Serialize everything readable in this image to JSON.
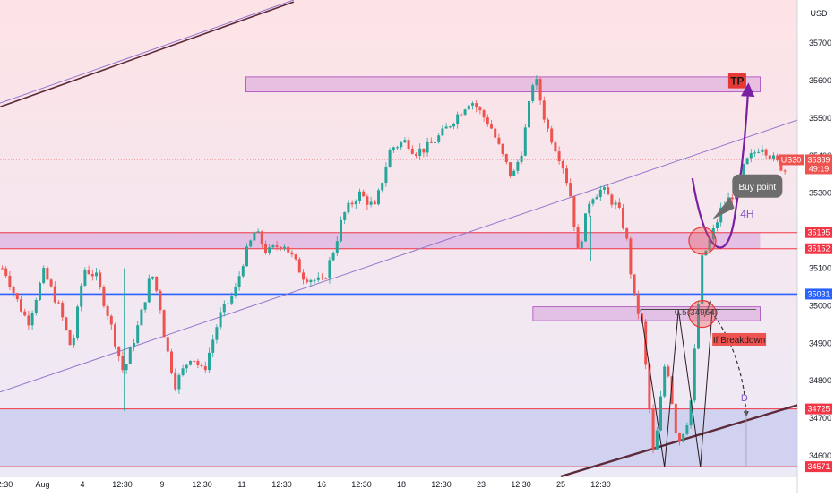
{
  "chart_data": {
    "type": "candlestick",
    "symbol": "US30",
    "currency": "USD",
    "current_price": 35389,
    "countdown": "49:19",
    "ylim": [
      34545,
      35815
    ],
    "y_ticks": [
      35700,
      35600,
      35500,
      35400,
      35300,
      35200,
      35100,
      35000,
      34900,
      34800,
      34700,
      34600
    ],
    "x_ticks": [
      "12:30",
      "Aug",
      "4",
      "12:30",
      "9",
      "12:30",
      "11",
      "12:30",
      "16",
      "12:30",
      "18",
      "12:30",
      "23",
      "12:30",
      "25",
      "12:30"
    ],
    "price_levels": [
      {
        "value": 35195,
        "kind": "resistance",
        "color": "#f23645"
      },
      {
        "value": 35152,
        "kind": "resistance",
        "color": "#f23645"
      },
      {
        "value": 35031,
        "kind": "pivot",
        "color": "#2962ff"
      },
      {
        "value": 34725,
        "kind": "support",
        "color": "#f23645"
      },
      {
        "value": 34571,
        "kind": "support",
        "color": "#f23645"
      }
    ],
    "zones": [
      {
        "low": 35570,
        "high": 35610,
        "label": "TP"
      },
      {
        "low": 35152,
        "high": 35195
      },
      {
        "low": 34960,
        "high": 34997,
        "label": "0.5(34964)"
      },
      {
        "low": 34571,
        "high": 34725
      }
    ],
    "annotations": {
      "tp": "TP",
      "buy_point": "Buy point",
      "timeframe": "4H",
      "fib": "0.5(34964)",
      "breakdown": "If Breakdown",
      "d_point": "D"
    },
    "colors": {
      "up": "#26a69a",
      "down": "#ef5350",
      "zone": "#ce93d8",
      "channel": "#9575cd",
      "trend": "#5d2a3a",
      "bg_top": "#fde3e6",
      "bg_bottom": "#eceaf7"
    },
    "price_path": [
      [
        0,
        35100
      ],
      [
        0.3,
        35020
      ],
      [
        0.6,
        34955
      ],
      [
        1,
        35090
      ],
      [
        1.4,
        34990
      ],
      [
        1.7,
        34880
      ],
      [
        2,
        35100
      ],
      [
        2.3,
        35080
      ],
      [
        2.6,
        34980
      ],
      [
        3,
        34820
      ],
      [
        3.4,
        34960
      ],
      [
        3.7,
        35090
      ],
      [
        3.9,
        35010
      ],
      [
        4.05,
        34900
      ],
      [
        4.3,
        34790
      ],
      [
        4.7,
        34870
      ],
      [
        5,
        34820
      ],
      [
        5.4,
        34970
      ],
      [
        5.8,
        35040
      ],
      [
        6,
        35120
      ],
      [
        6.3,
        35200
      ],
      [
        6.6,
        35140
      ],
      [
        7,
        35170
      ],
      [
        7.5,
        35080
      ],
      [
        8,
        35060
      ],
      [
        8.3,
        35160
      ],
      [
        8.5,
        35240
      ],
      [
        8.9,
        35300
      ],
      [
        9.3,
        35260
      ],
      [
        9.7,
        35420
      ],
      [
        10.1,
        35440
      ],
      [
        10.3,
        35410
      ],
      [
        10.6,
        35420
      ],
      [
        11,
        35460
      ],
      [
        11.3,
        35500
      ],
      [
        11.7,
        35550
      ],
      [
        12.2,
        35480
      ],
      [
        12.5,
        35400
      ],
      [
        12.75,
        35340
      ],
      [
        13,
        35420
      ],
      [
        13.3,
        35620
      ],
      [
        13.6,
        35480
      ],
      [
        14,
        35380
      ],
      [
        14.2,
        35300
      ],
      [
        14.4,
        35140
      ],
      [
        14.7,
        35290
      ],
      [
        15,
        35310
      ],
      [
        15.4,
        35260
      ],
      [
        15.6,
        35190
      ],
      [
        15.8,
        35020
      ],
      [
        16,
        34950
      ],
      [
        16.3,
        34590
      ],
      [
        16.6,
        34870
      ],
      [
        16.9,
        34630
      ],
      [
        17.2,
        34710
      ],
      [
        17.5,
        35120
      ],
      [
        17.8,
        35200
      ],
      [
        18,
        35260
      ],
      [
        18.3,
        35300
      ],
      [
        18.6,
        35380
      ],
      [
        19,
        35430
      ],
      [
        19.3,
        35390
      ],
      [
        19.6,
        35360
      ]
    ]
  }
}
